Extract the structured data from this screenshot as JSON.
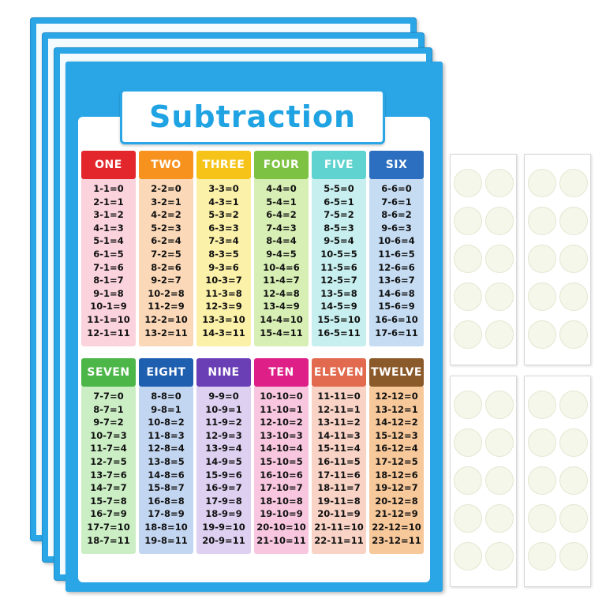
{
  "title": "Subtraction",
  "columns": [
    {
      "name": "ONE",
      "head": "#e2262c",
      "body": "#fbd3dd",
      "rows": [
        "1-1=0",
        "2-1=1",
        "3-1=2",
        "4-1=3",
        "5-1=4",
        "6-1=5",
        "7-1=6",
        "8-1=7",
        "9-1=8",
        "10-1=9",
        "11-1=10",
        "12-1=11"
      ]
    },
    {
      "name": "TWO",
      "head": "#f7921e",
      "body": "#fbd8b8",
      "rows": [
        "2-2=0",
        "3-2=1",
        "4-2=2",
        "5-2=3",
        "6-2=4",
        "7-2=5",
        "8-2=6",
        "9-2=7",
        "10-2=8",
        "11-2=9",
        "12-2=10",
        "13-2=11"
      ]
    },
    {
      "name": "THREE",
      "head": "#f6c419",
      "body": "#fbf1a8",
      "rows": [
        "3-3=0",
        "4-3=1",
        "5-3=2",
        "6-3=3",
        "7-3=4",
        "8-3=5",
        "9-3=6",
        "10-3=7",
        "11-3=8",
        "12-3=9",
        "13-3=10",
        "14-3=11"
      ]
    },
    {
      "name": "FOUR",
      "head": "#7dc242",
      "body": "#d7efb4",
      "rows": [
        "4-4=0",
        "5-4=1",
        "6-4=2",
        "7-4=3",
        "8-4=4",
        "9-4=5",
        "10-4=6",
        "11-4=7",
        "12-4=8",
        "13-4=9",
        "14-4=10",
        "15-4=11"
      ]
    },
    {
      "name": "FIVE",
      "head": "#5fd3cf",
      "body": "#c8efef",
      "rows": [
        "5-5=0",
        "6-5=1",
        "7-5=2",
        "8-5=3",
        "9-5=4",
        "10-5=5",
        "11-5=6",
        "12-5=7",
        "13-5=8",
        "14-5=9",
        "15-5=10",
        "16-5=11"
      ]
    },
    {
      "name": "SIX",
      "head": "#2c6fc0",
      "body": "#c5dcf3",
      "rows": [
        "6-6=0",
        "7-6=1",
        "8-6=2",
        "9-6=3",
        "10-6=4",
        "11-6=5",
        "12-6=6",
        "13-6=7",
        "14-6=8",
        "15-6=9",
        "16-6=10",
        "17-6=11"
      ]
    },
    {
      "name": "SEVEN",
      "head": "#4cb748",
      "body": "#cbeec4",
      "rows": [
        "7-7=0",
        "8-7=1",
        "9-7=2",
        "10-7=3",
        "11-7=4",
        "12-7=5",
        "13-7=6",
        "14-7=7",
        "15-7=8",
        "16-7=9",
        "17-7=10",
        "18-7=11"
      ]
    },
    {
      "name": "EIGHT",
      "head": "#1e5fb0",
      "body": "#c3d6f1",
      "rows": [
        "8-8=0",
        "9-8=1",
        "10-8=2",
        "11-8=3",
        "12-8=4",
        "13-8=5",
        "14-8=6",
        "15-8=7",
        "16-8=8",
        "17-8=9",
        "18-8=10",
        "19-8=11"
      ]
    },
    {
      "name": "NINE",
      "head": "#6a3fb6",
      "body": "#ddd0f1",
      "rows": [
        "9-9=0",
        "10-9=1",
        "11-9=2",
        "12-9=3",
        "13-9=4",
        "14-9=5",
        "15-9=6",
        "16-9=7",
        "17-9=8",
        "18-9=9",
        "19-9=10",
        "20-9=11"
      ]
    },
    {
      "name": "TEN",
      "head": "#dd1f87",
      "body": "#f8c7df",
      "rows": [
        "10-10=0",
        "11-10=1",
        "12-10=2",
        "13-10=3",
        "14-10=4",
        "15-10=5",
        "16-10=6",
        "17-10=7",
        "18-10=8",
        "19-10=9",
        "20-10=10",
        "21-10=11"
      ]
    },
    {
      "name": "ELEVEN",
      "head": "#e26a4f",
      "body": "#f8d3c6",
      "rows": [
        "11-11=0",
        "12-11=1",
        "13-11=2",
        "14-11=3",
        "15-11=4",
        "16-11=5",
        "17-11=6",
        "18-11=7",
        "19-11=8",
        "20-11=9",
        "21-11=10",
        "22-11=11"
      ]
    },
    {
      "name": "TWELVE",
      "head": "#8b5a2b",
      "body": "#f7c89a",
      "rows": [
        "12-12=0",
        "13-12=1",
        "14-12=2",
        "15-12=3",
        "16-12=4",
        "17-12=5",
        "18-12=6",
        "19-12=7",
        "20-12=8",
        "21-12=9",
        "22-12=10",
        "23-12=11"
      ]
    }
  ],
  "sticker_strips": 4,
  "dots_per_strip": 10
}
